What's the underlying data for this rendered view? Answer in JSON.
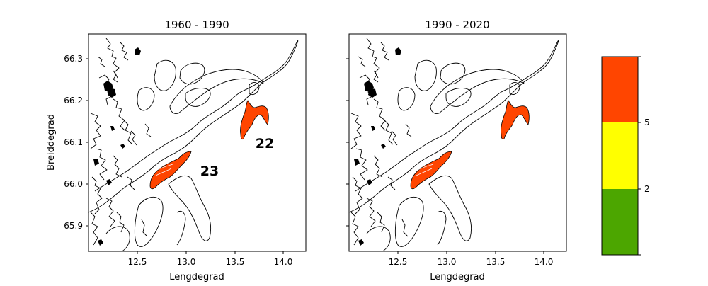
{
  "panels": [
    {
      "title": "1960 - 1990",
      "xlabel": "Lengdegrad",
      "ylabel": "Breiddegrad",
      "region_labels": [
        "22",
        "23"
      ]
    },
    {
      "title": "1990 - 2020",
      "xlabel": "Lengdegrad",
      "ylabel": ""
    }
  ],
  "axis": {
    "x_ticks": [
      "12.5",
      "13.0",
      "13.5",
      "14.0"
    ],
    "y_ticks": [
      "66.3",
      "66.2",
      "66.1",
      "66.0",
      "65.9"
    ]
  },
  "legend": {
    "tick_labels": [
      "5",
      "2"
    ],
    "colors": {
      "high": "#ff4500",
      "mid": "#ffff00",
      "low": "#4ca600"
    }
  },
  "colors": {
    "region_fill": "#ff4500",
    "coast_line": "#000000"
  },
  "chart_data": {
    "type": "map",
    "x_axis_label": "Lengdegrad",
    "y_axis_label": "Breiddegrad",
    "xlim": [
      12.02,
      14.22
    ],
    "ylim": [
      65.84,
      66.36
    ],
    "x_tick_values": [
      12.5,
      13.0,
      13.5,
      14.0
    ],
    "y_tick_values": [
      65.9,
      66.0,
      66.1,
      66.2,
      66.3
    ],
    "regions": [
      {
        "label": "22",
        "color": "#ff4500",
        "lon_range": [
          13.52,
          13.82
        ],
        "lat_range": [
          66.11,
          66.19
        ]
      },
      {
        "label": "23",
        "color": "#ff4500",
        "lon_range": [
          12.6,
          13.05
        ],
        "lat_range": [
          66.0,
          66.08
        ]
      }
    ],
    "colorbar": {
      "ticks": [
        2,
        5
      ],
      "colors": [
        "#4ca600",
        "#ffff00",
        "#ff4500"
      ]
    }
  }
}
